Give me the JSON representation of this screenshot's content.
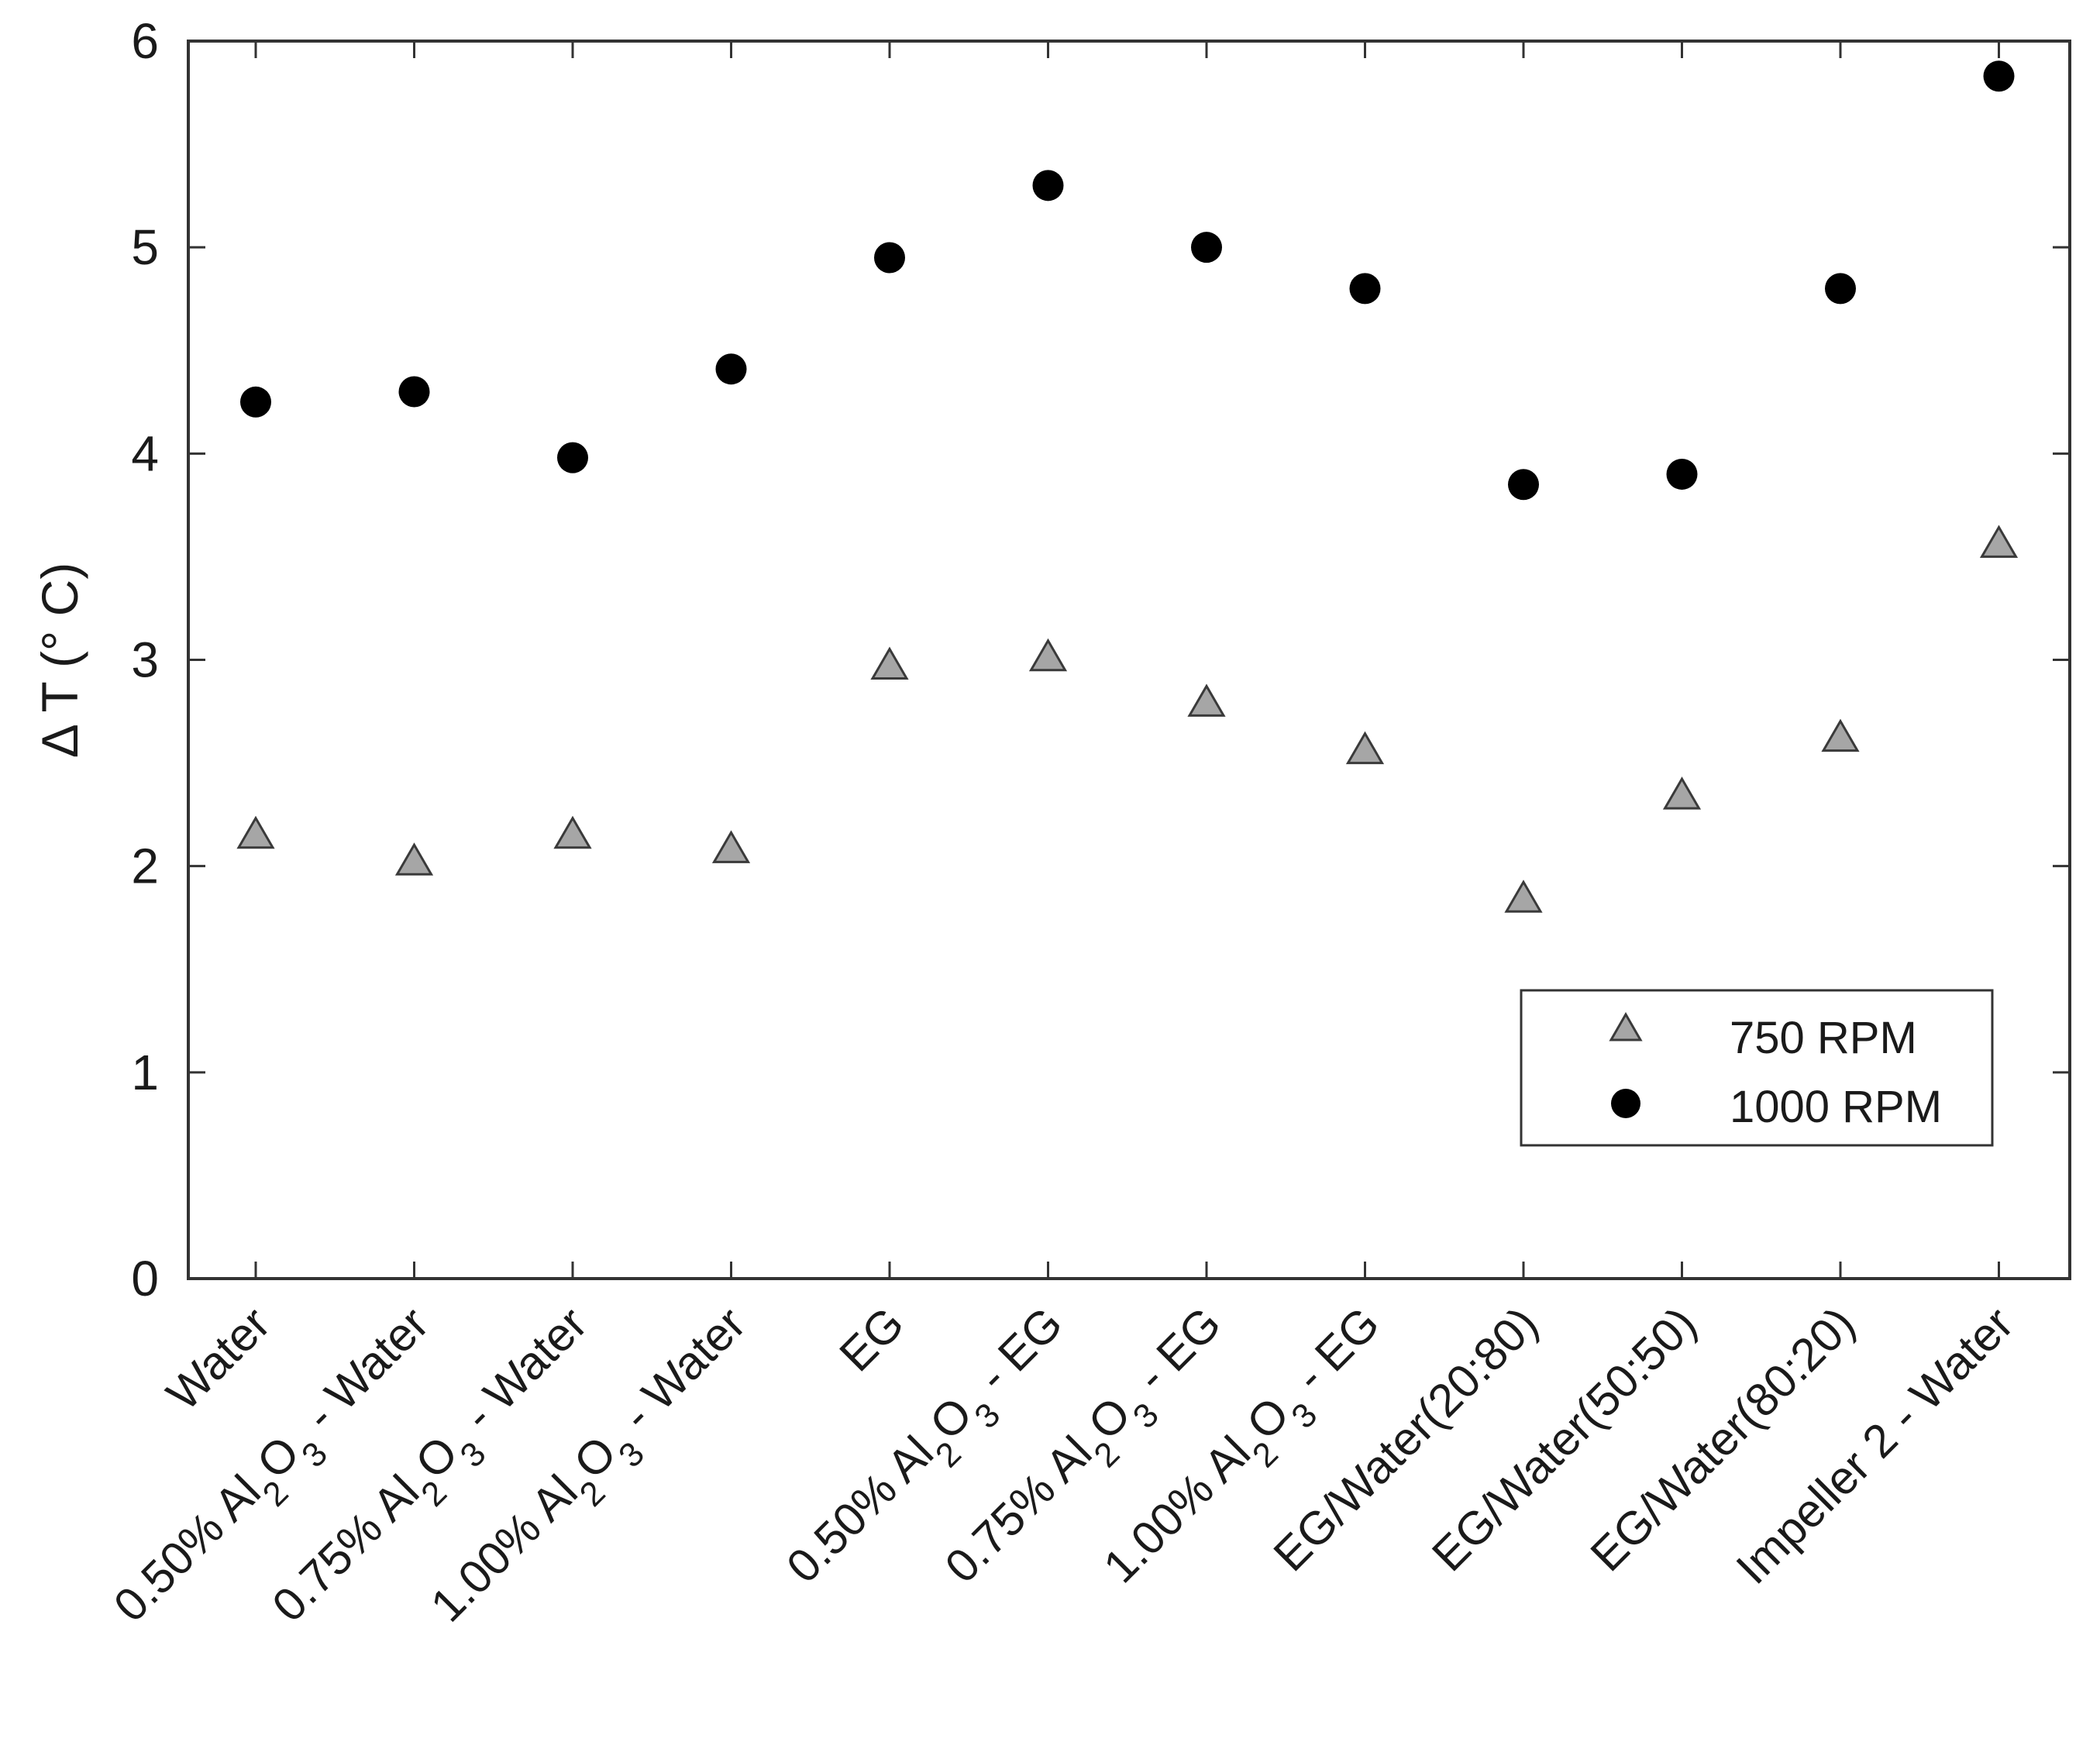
{
  "chart_data": {
    "type": "scatter",
    "title": "",
    "xlabel": "",
    "ylabel": "Δ T (° C)",
    "ylim": [
      0,
      6
    ],
    "yticks": [
      0,
      1,
      2,
      3,
      4,
      5,
      6
    ],
    "grid": false,
    "legend_position": "lower-right",
    "categories": [
      "Water",
      "0.50% Al2O3 - Water",
      "0.75% Al2O3 - Water",
      "1.00% Al2O3 - Water",
      "EG",
      "0.50% Al2O3 - EG",
      "0.75% Al2O3 - EG",
      "1.00% Al2O3 - EG",
      "EG/Water(20:80)",
      "EG/Water(50:50)",
      "EG/Water(80:20)",
      "Impeller 2 - Water"
    ],
    "series": [
      {
        "name": "750 RPM",
        "marker": "triangle",
        "color": "#a6a6a6",
        "values": [
          2.15,
          2.02,
          2.15,
          2.08,
          2.97,
          3.01,
          2.79,
          2.56,
          1.84,
          2.34,
          2.62,
          3.56
        ]
      },
      {
        "name": "1000 RPM",
        "marker": "circle",
        "color": "#000000",
        "values": [
          4.25,
          4.3,
          3.98,
          4.41,
          4.95,
          5.3,
          5.0,
          4.8,
          3.85,
          3.9,
          4.8,
          5.83
        ]
      }
    ]
  }
}
